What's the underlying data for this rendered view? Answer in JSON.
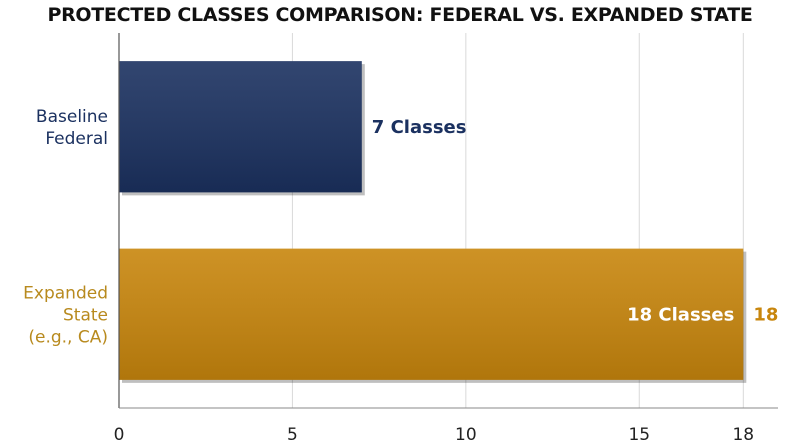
{
  "chart_data": {
    "type": "bar",
    "orientation": "horizontal",
    "title": "PROTECTED CLASSES COMPARISON: FEDERAL VS. EXPANDED STATE",
    "categories": [
      {
        "lines": [
          "Baseline",
          "Federal"
        ],
        "value": 7,
        "bar_label": "7 Classes",
        "end_label": "",
        "color": "#1b3160",
        "label_color": "#1b3160",
        "bar_label_position": "outside"
      },
      {
        "lines": [
          "Expanded",
          "State",
          "(e.g., CA)"
        ],
        "value": 18,
        "bar_label": "18 Classes",
        "end_label": "18",
        "color": "#c8860d",
        "label_color": "#b88a1e",
        "bar_label_position": "inside"
      }
    ],
    "xlim": [
      0,
      19
    ],
    "xticks": [
      "0",
      "5",
      "10",
      "15",
      "18"
    ],
    "grid": true
  }
}
